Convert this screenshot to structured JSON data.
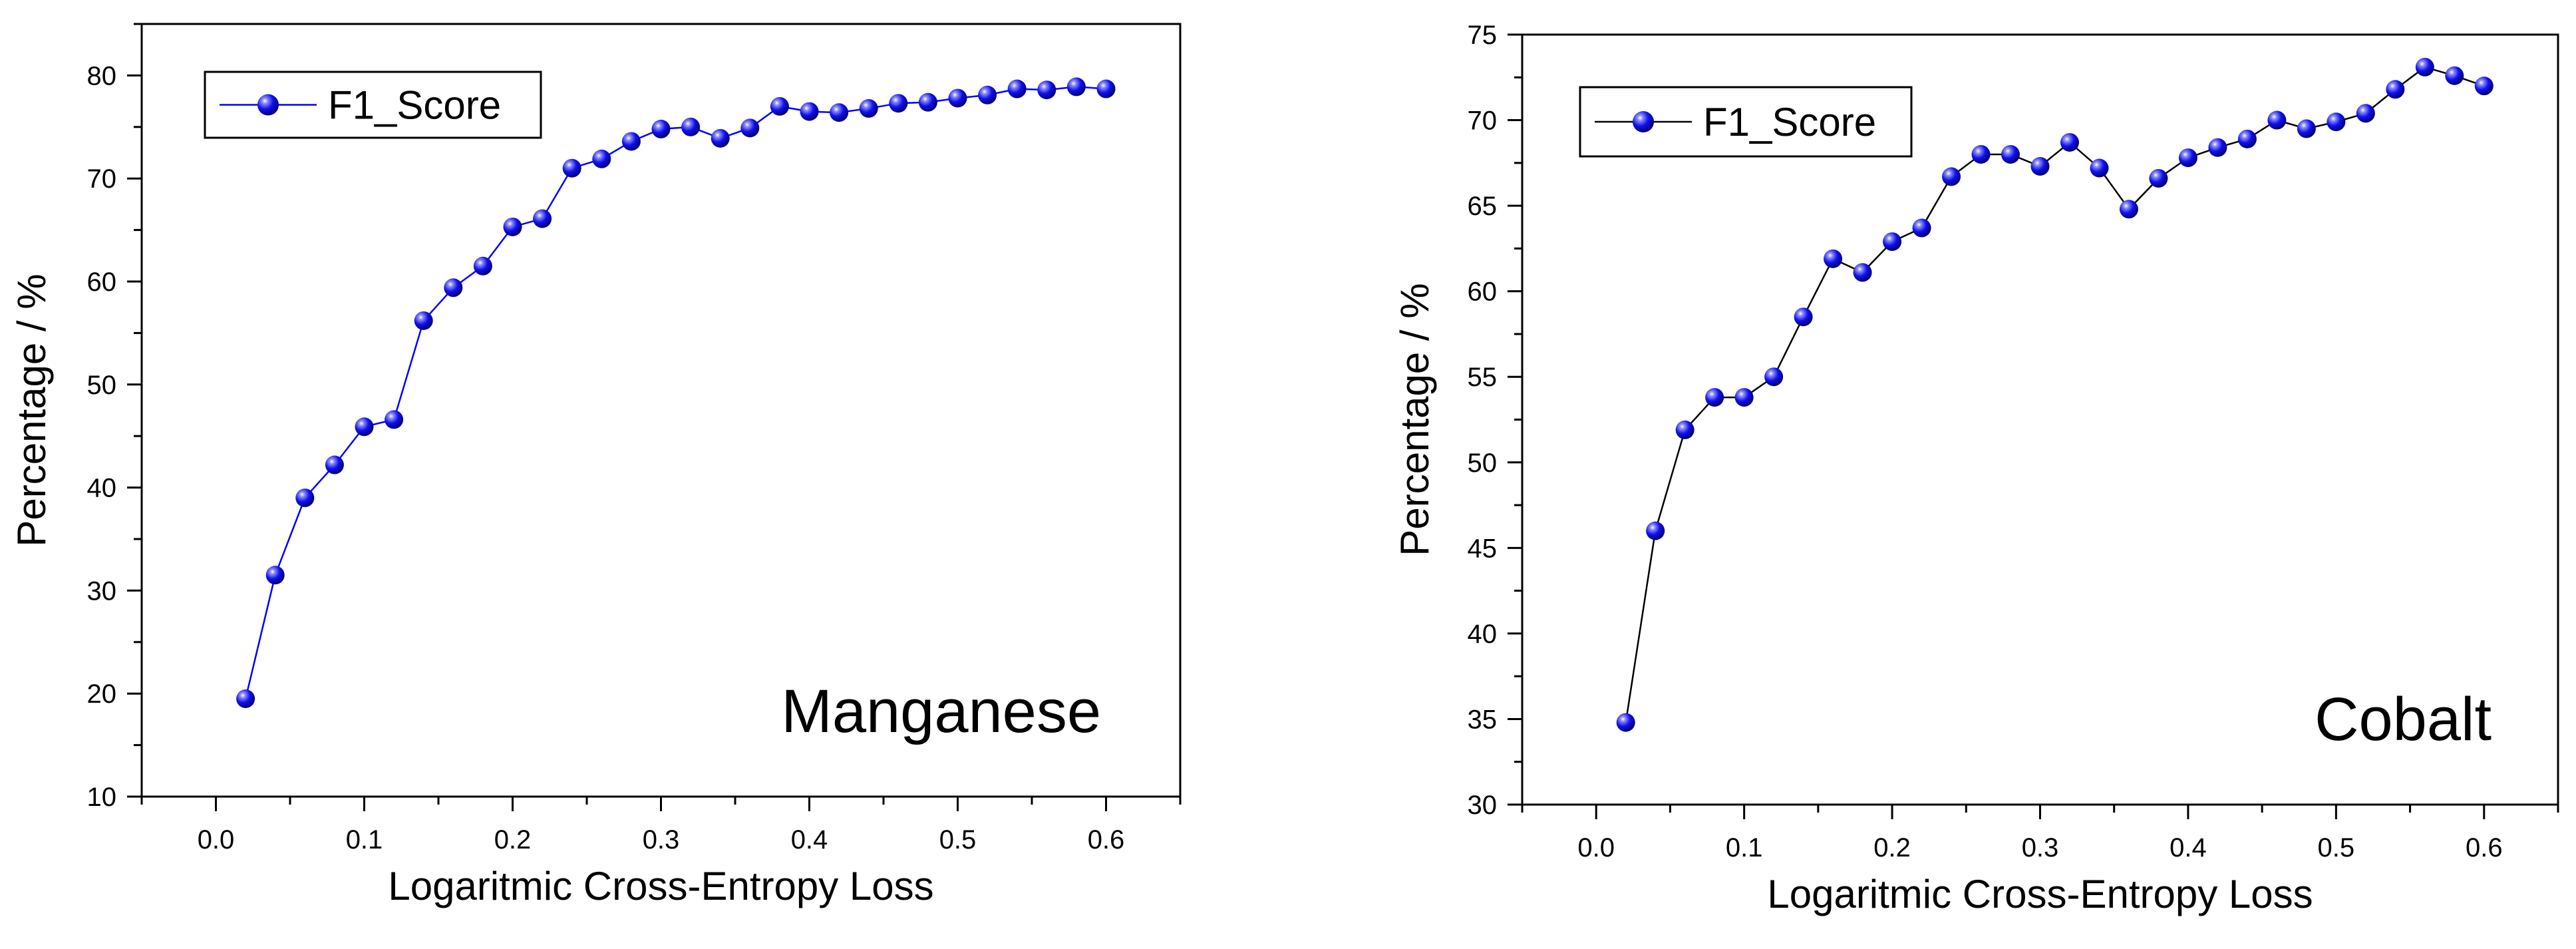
{
  "chart_data": [
    {
      "type": "line",
      "title": "",
      "annotation": "Manganese",
      "xlabel": "Logaritmic Cross-Entropy Loss",
      "ylabel": "Percentage / %",
      "xlim": [
        -0.05,
        0.65
      ],
      "ylim": [
        10,
        85
      ],
      "xticks": [
        0.0,
        0.1,
        0.2,
        0.3,
        0.4,
        0.5,
        0.6
      ],
      "xtick_labels": [
        "0.0",
        "0.1",
        "0.2",
        "0.3",
        "0.4",
        "0.5",
        "0.6"
      ],
      "yticks": [
        10,
        20,
        30,
        40,
        50,
        60,
        70,
        80
      ],
      "ytick_labels": [
        "10",
        "20",
        "30",
        "40",
        "50",
        "60",
        "70",
        "80"
      ],
      "grid": false,
      "legend_position": "top-left",
      "series": [
        {
          "name": "F1_Score",
          "line_color": "#0000ff",
          "marker_color": "#1010ee",
          "x": [
            0.02,
            0.04,
            0.06,
            0.08,
            0.1,
            0.12,
            0.14,
            0.16,
            0.18,
            0.2,
            0.22,
            0.24,
            0.26,
            0.28,
            0.3,
            0.32,
            0.34,
            0.36,
            0.38,
            0.4,
            0.42,
            0.44,
            0.46,
            0.48,
            0.5,
            0.52,
            0.54,
            0.56,
            0.58,
            0.6
          ],
          "y": [
            19.5,
            31.5,
            39.0,
            42.2,
            45.9,
            46.6,
            56.2,
            59.4,
            61.5,
            65.3,
            66.1,
            71.0,
            71.9,
            73.6,
            74.8,
            75.0,
            73.9,
            74.9,
            77.0,
            76.5,
            76.4,
            76.8,
            77.3,
            77.4,
            77.8,
            78.1,
            78.7,
            78.6,
            78.9,
            78.7
          ]
        }
      ]
    },
    {
      "type": "line",
      "title": "",
      "annotation": "Cobalt",
      "xlabel": "Logaritmic Cross-Entropy Loss",
      "ylabel": "Percentage / %",
      "xlim": [
        -0.05,
        0.65
      ],
      "ylim": [
        30,
        75
      ],
      "xticks": [
        0.0,
        0.1,
        0.2,
        0.3,
        0.4,
        0.5,
        0.6
      ],
      "xtick_labels": [
        "0.0",
        "0.1",
        "0.2",
        "0.3",
        "0.4",
        "0.5",
        "0.6"
      ],
      "yticks": [
        30,
        35,
        40,
        45,
        50,
        55,
        60,
        65,
        70,
        75
      ],
      "ytick_labels": [
        "30",
        "35",
        "40",
        "45",
        "50",
        "55",
        "60",
        "65",
        "70",
        "75"
      ],
      "grid": false,
      "legend_position": "top-left",
      "series": [
        {
          "name": "F1_Score",
          "line_color": "#000000",
          "marker_color": "#1010ee",
          "x": [
            0.02,
            0.04,
            0.06,
            0.08,
            0.1,
            0.12,
            0.14,
            0.16,
            0.18,
            0.2,
            0.22,
            0.24,
            0.26,
            0.28,
            0.3,
            0.32,
            0.34,
            0.36,
            0.38,
            0.4,
            0.42,
            0.44,
            0.46,
            0.48,
            0.5,
            0.52,
            0.54,
            0.56,
            0.58,
            0.6
          ],
          "y": [
            34.8,
            46.0,
            51.9,
            53.8,
            53.8,
            55.0,
            58.5,
            61.9,
            61.1,
            62.9,
            63.7,
            66.7,
            68.0,
            68.0,
            67.3,
            68.7,
            67.2,
            64.8,
            66.6,
            67.8,
            68.4,
            68.9,
            70.0,
            69.5,
            69.9,
            70.4,
            71.8,
            73.1,
            72.6,
            72.0
          ]
        }
      ]
    }
  ]
}
